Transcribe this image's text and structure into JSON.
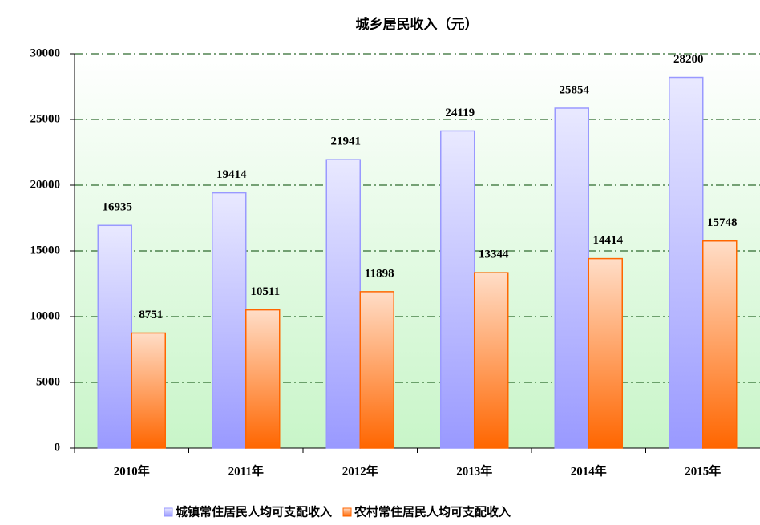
{
  "chart_data": {
    "type": "bar",
    "title": "城乡居民收入（元）",
    "categories": [
      "2010年",
      "2011年",
      "2012年",
      "2013年",
      "2014年",
      "2015年"
    ],
    "series": [
      {
        "name": "城镇常住居民人均可支配收入",
        "color": "#9999ff",
        "values": [
          16935,
          19414,
          21941,
          24119,
          25854,
          28200
        ]
      },
      {
        "name": "农村常住居民人均可支配收入",
        "color": "#ff6600",
        "values": [
          8751,
          10511,
          11898,
          13344,
          14414,
          15748
        ]
      }
    ],
    "ylim": [
      0,
      30000
    ],
    "yticks": [
      0,
      5000,
      10000,
      15000,
      20000,
      25000,
      30000
    ],
    "grid": true,
    "legend": "bottom"
  }
}
